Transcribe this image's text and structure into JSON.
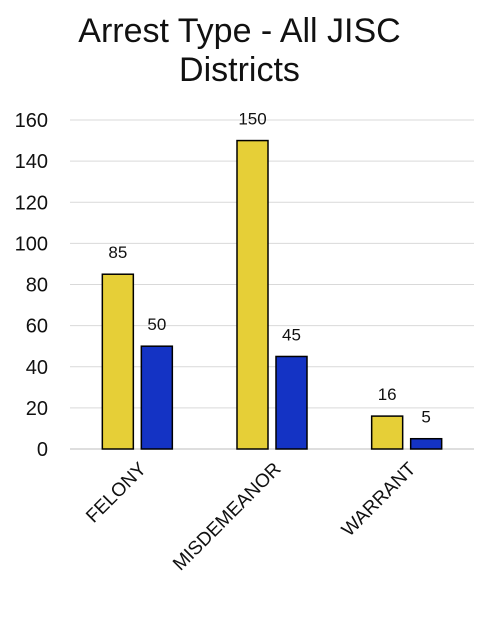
{
  "chart_data": {
    "type": "bar",
    "title_lines": [
      "Arrest Type - All JISC",
      "Districts"
    ],
    "categories": [
      "FELONY",
      "MISDEMEANOR",
      "WARRANT"
    ],
    "series": [
      {
        "values": [
          85,
          150,
          16
        ],
        "color": "#E6CF37"
      },
      {
        "values": [
          50,
          45,
          5
        ],
        "color": "#1433C4"
      }
    ],
    "ylim": [
      0,
      160
    ],
    "yticks": [
      0,
      20,
      40,
      60,
      80,
      100,
      120,
      140,
      160
    ],
    "grid": true,
    "xlabel": "",
    "ylabel": ""
  }
}
